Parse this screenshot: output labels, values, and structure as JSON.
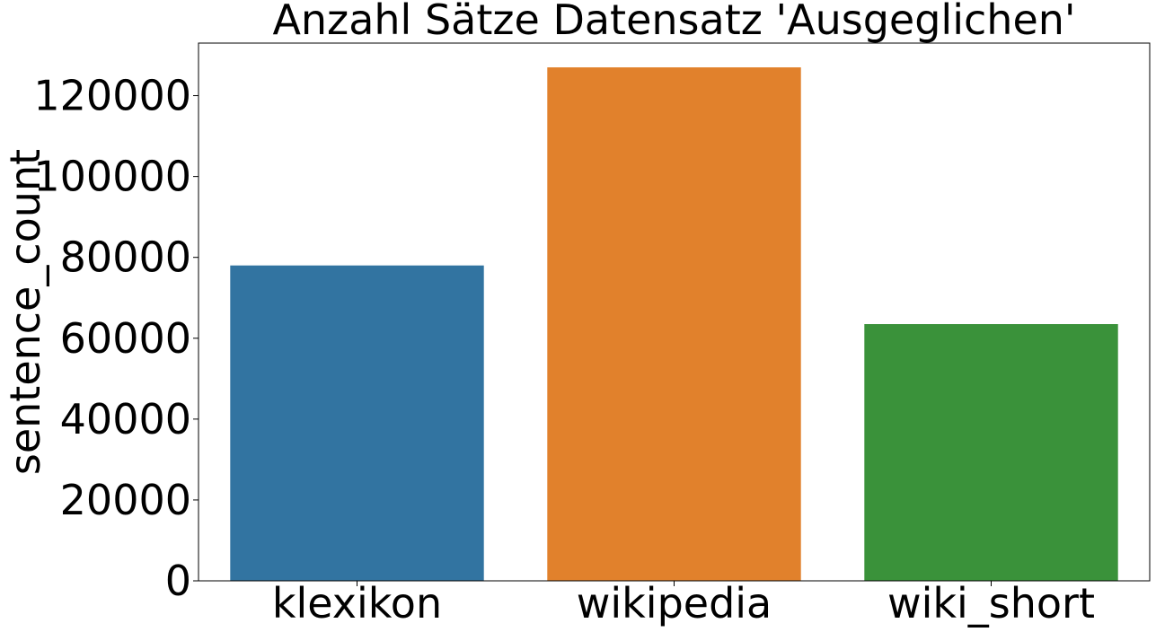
{
  "chart_data": {
    "type": "bar",
    "title": "Anzahl Sätze Datensatz 'Ausgeglichen'",
    "xlabel": "",
    "ylabel": "sentence_count",
    "categories": [
      "klexikon",
      "wikipedia",
      "wiki_short"
    ],
    "values": [
      78000,
      127000,
      63500
    ],
    "colors": [
      "#3274a1",
      "#e1812c",
      "#3a923a"
    ],
    "yticks": [
      0,
      20000,
      40000,
      60000,
      80000,
      100000,
      120000
    ],
    "ylim": [
      0,
      133000
    ],
    "grid": false,
    "legend": "none"
  }
}
